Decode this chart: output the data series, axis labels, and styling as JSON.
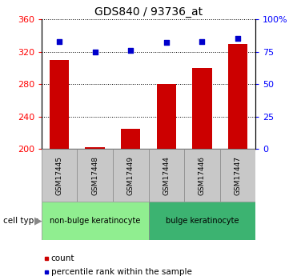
{
  "title": "GDS840 / 93736_at",
  "samples": [
    "GSM17445",
    "GSM17448",
    "GSM17449",
    "GSM17444",
    "GSM17446",
    "GSM17447"
  ],
  "counts": [
    310,
    202,
    225,
    280,
    300,
    330
  ],
  "percentiles": [
    83,
    75,
    76,
    82,
    83,
    85
  ],
  "group_spans": [
    [
      0,
      3,
      "non-bulge keratinocyte",
      "#90EE90"
    ],
    [
      3,
      6,
      "bulge keratinocyte",
      "#3CB371"
    ]
  ],
  "bar_color": "#CC0000",
  "dot_color": "#0000CC",
  "ylim_left": [
    200,
    360
  ],
  "ylim_right": [
    0,
    100
  ],
  "yticks_left": [
    200,
    240,
    280,
    320,
    360
  ],
  "yticks_right": [
    0,
    25,
    50,
    75,
    100
  ],
  "yticklabels_right": [
    "0",
    "25",
    "50",
    "75",
    "100%"
  ],
  "bar_bottom": 200,
  "cell_type_label": "cell type",
  "legend_count_label": "count",
  "legend_pct_label": "percentile rank within the sample",
  "label_box_color": "#C8C8C8",
  "title_fontsize": 10
}
